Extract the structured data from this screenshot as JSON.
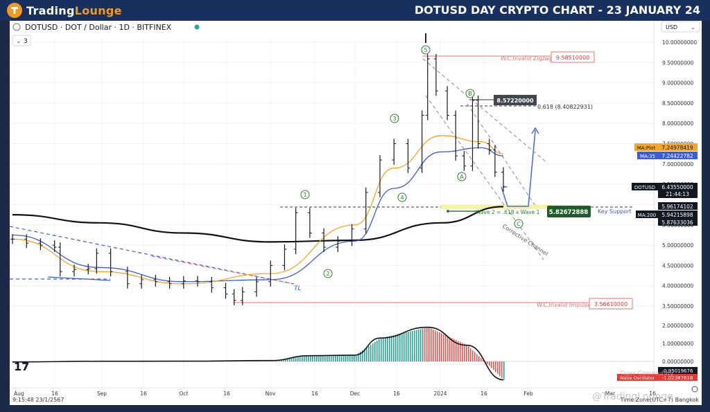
{
  "banner": {
    "brand_part1": "Trading",
    "brand_part2": "Lounge",
    "title": "DOTUSD DAY CRYPTO CHART - 23 JANUARY 24"
  },
  "header": {
    "symbol_line": "DOTUSD · DOT / Dollar · 1D · BITFINEX",
    "interval_badge": "3",
    "currency": "USD"
  },
  "footer": {
    "timestamp": "9:15:48 23/1/2567",
    "timezone": "Time Zone(UTC+7) Bangkok",
    "watermark": "@TradingLounge",
    "community": "Tiger Community"
  },
  "chart_data": {
    "type": "line",
    "y_axis": {
      "min": 3.0,
      "max": 10.1,
      "ticks": [
        "10.00000000",
        "9.50000000",
        "9.00000000",
        "8.50000000",
        "8.00000000",
        "7.50000000",
        "7.00000000",
        "6.50000000",
        "6.00000000",
        "5.50000000",
        "5.00000000",
        "4.50000000",
        "4.00000000",
        "3.50000000"
      ]
    },
    "x_axis": {
      "ticks": [
        "Aug",
        "16",
        "Sep",
        "16",
        "Oct",
        "16",
        "Nov",
        "16",
        "Dec",
        "16",
        "2024",
        "16",
        "Feb",
        "Mar",
        "16"
      ]
    },
    "price_series": [
      {
        "date": "2023-08-01",
        "close": 5.15
      },
      {
        "date": "2023-08-06",
        "close": 5.05
      },
      {
        "date": "2023-08-11",
        "close": 5.0
      },
      {
        "date": "2023-08-16",
        "close": 4.95
      },
      {
        "date": "2023-08-18",
        "close": 4.35
      },
      {
        "date": "2023-08-23",
        "close": 4.4
      },
      {
        "date": "2023-08-28",
        "close": 4.42
      },
      {
        "date": "2023-08-31",
        "close": 4.8
      },
      {
        "date": "2023-09-05",
        "close": 4.35
      },
      {
        "date": "2023-09-11",
        "close": 4.05
      },
      {
        "date": "2023-09-16",
        "close": 4.15
      },
      {
        "date": "2023-09-21",
        "close": 4.1
      },
      {
        "date": "2023-09-26",
        "close": 4.05
      },
      {
        "date": "2023-10-01",
        "close": 4.12
      },
      {
        "date": "2023-10-06",
        "close": 4.1
      },
      {
        "date": "2023-10-11",
        "close": 3.95
      },
      {
        "date": "2023-10-16",
        "close": 3.8
      },
      {
        "date": "2023-10-19",
        "close": 3.64
      },
      {
        "date": "2023-10-22",
        "close": 3.85
      },
      {
        "date": "2023-10-27",
        "close": 4.1
      },
      {
        "date": "2023-11-01",
        "close": 4.5
      },
      {
        "date": "2023-11-06",
        "close": 4.9
      },
      {
        "date": "2023-11-10",
        "close": 5.8
      },
      {
        "date": "2023-11-15",
        "close": 5.3
      },
      {
        "date": "2023-11-20",
        "close": 4.95
      },
      {
        "date": "2023-11-25",
        "close": 5.1
      },
      {
        "date": "2023-11-30",
        "close": 5.4
      },
      {
        "date": "2023-12-05",
        "close": 6.3
      },
      {
        "date": "2023-12-10",
        "close": 7.1
      },
      {
        "date": "2023-12-15",
        "close": 7.5
      },
      {
        "date": "2023-12-20",
        "close": 6.9
      },
      {
        "date": "2023-12-25",
        "close": 8.2
      },
      {
        "date": "2023-12-27",
        "close": 9.59
      },
      {
        "date": "2023-12-30",
        "close": 8.8
      },
      {
        "date": "2024-01-03",
        "close": 8.2
      },
      {
        "date": "2024-01-06",
        "close": 7.2
      },
      {
        "date": "2024-01-09",
        "close": 6.95
      },
      {
        "date": "2024-01-12",
        "close": 8.57
      },
      {
        "date": "2024-01-14",
        "close": 7.5
      },
      {
        "date": "2024-01-18",
        "close": 7.35
      },
      {
        "date": "2024-01-20",
        "close": 6.8
      },
      {
        "date": "2024-01-23",
        "close": 6.44
      }
    ],
    "ma200_series": [
      {
        "date": "2023-08-01",
        "value": 5.75
      },
      {
        "date": "2023-09-01",
        "value": 5.55
      },
      {
        "date": "2023-10-01",
        "value": 5.3
      },
      {
        "date": "2023-11-01",
        "value": 5.08
      },
      {
        "date": "2023-12-01",
        "value": 5.12
      },
      {
        "date": "2024-01-01",
        "value": 5.55
      },
      {
        "date": "2024-01-23",
        "value": 5.95
      }
    ],
    "ma35_series": [
      {
        "date": "2023-08-01",
        "value": 5.25
      },
      {
        "date": "2023-09-01",
        "value": 4.45
      },
      {
        "date": "2023-10-01",
        "value": 4.1
      },
      {
        "date": "2023-11-01",
        "value": 4.15
      },
      {
        "date": "2023-12-01",
        "value": 5.1
      },
      {
        "date": "2023-12-15",
        "value": 6.4
      },
      {
        "date": "2024-01-01",
        "value": 7.3
      },
      {
        "date": "2024-01-15",
        "value": 7.4
      },
      {
        "date": "2024-01-23",
        "value": 7.2
      }
    ],
    "maplot_series": [
      {
        "date": "2023-08-01",
        "value": 5.15
      },
      {
        "date": "2023-09-01",
        "value": 4.35
      },
      {
        "date": "2023-10-01",
        "value": 4.05
      },
      {
        "date": "2023-11-01",
        "value": 4.3
      },
      {
        "date": "2023-12-01",
        "value": 5.5
      },
      {
        "date": "2023-12-15",
        "value": 6.9
      },
      {
        "date": "2024-01-01",
        "value": 7.7
      },
      {
        "date": "2024-01-15",
        "value": 7.55
      },
      {
        "date": "2024-01-23",
        "value": 7.25
      }
    ],
    "oscillator": [
      {
        "date": "2023-08-01",
        "value": -0.03
      },
      {
        "date": "2023-09-01",
        "value": 0.01
      },
      {
        "date": "2023-10-01",
        "value": 0.015
      },
      {
        "date": "2023-11-01",
        "value": 0.05
      },
      {
        "date": "2023-11-15",
        "value": 0.32
      },
      {
        "date": "2023-12-01",
        "value": 0.35
      },
      {
        "date": "2023-12-10",
        "value": 1.3
      },
      {
        "date": "2023-12-27",
        "value": 1.9
      },
      {
        "date": "2024-01-10",
        "value": 0.9
      },
      {
        "date": "2024-01-23",
        "value": -1.02
      }
    ],
    "wave_labels": [
      "1",
      "2",
      "3",
      "4",
      "5",
      "A",
      "B",
      "C"
    ],
    "annotations": {
      "invalid_zigzag": {
        "label": "W.C.Invalid Zigzag",
        "value": "9.58510000"
      },
      "invalid_impulse": {
        "label": "W.C.Invalid Impulse",
        "value": "3.56610000"
      },
      "b_high": {
        "value": "8.57220000"
      },
      "fib_618": {
        "label": "0.618 (8.40822931)"
      },
      "wave2_target": {
        "label": "Wave 2 = .618 x Wave 1",
        "value": "5.82672888"
      },
      "key_support": {
        "label": "Key Support"
      },
      "corrective_channel": {
        "label": "Corrective Channel"
      },
      "tl_label": {
        "label": "TL"
      }
    },
    "legend": {
      "maplot": {
        "label": "MA:Plot",
        "value": "7.24978419",
        "color": "#f5a623"
      },
      "ma35": {
        "label": "MA:35",
        "value": "7.24422782",
        "color": "#3b5bdb"
      },
      "ma200": {
        "label": "MA:200",
        "value": "5.94215898",
        "color": "#111111"
      },
      "dotusd": {
        "label": "DOTUSD",
        "value": "6.43550000",
        "countdown": "21:44:13"
      },
      "price_extra_1": "5.96174102",
      "price_extra_2": "5.87633036",
      "osc_value": "-0.95019676",
      "osc": {
        "label": "Wave Oscillator",
        "value": "-1.02387618"
      }
    }
  }
}
